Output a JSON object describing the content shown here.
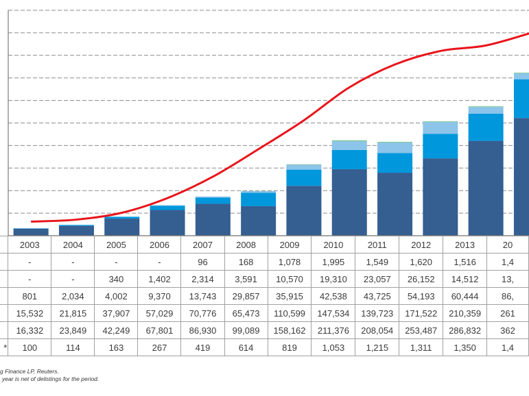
{
  "chart_data": {
    "type": "bar",
    "stacked": true,
    "title": "",
    "xlabel": "",
    "ylabel": "",
    "categories": [
      "2003",
      "2004",
      "2005",
      "2006",
      "2007",
      "2008",
      "2009",
      "2010",
      "2011",
      "2012",
      "2013",
      "2014"
    ],
    "ylim": [
      0,
      500000
    ],
    "y_gridlines": 10,
    "grid": true,
    "series": [
      {
        "name": "",
        "color": "#355e91",
        "values": [
          15532,
          21815,
          37907,
          57029,
          70776,
          65473,
          110599,
          147534,
          139723,
          171522,
          210359,
          261000
        ]
      },
      {
        "name": "",
        "color": "#0097dc",
        "values": [
          801,
          2034,
          4002,
          9370,
          13743,
          29857,
          35915,
          42538,
          43725,
          54193,
          60444,
          86000
        ]
      },
      {
        "name": "",
        "color": "#8cc4ea",
        "values": [
          0,
          0,
          340,
          1402,
          2314,
          3591,
          10570,
          19310,
          23057,
          26152,
          14512,
          13000
        ]
      },
      {
        "name": "",
        "color": "#6dbf8e",
        "values": [
          0,
          0,
          0,
          0,
          96,
          168,
          1078,
          1995,
          1549,
          1620,
          1516,
          1400
        ]
      }
    ],
    "line_series": {
      "name": "index",
      "color": "#e8141b",
      "axis": "secondary",
      "ylim": [
        0,
        1600
      ],
      "values": [
        100,
        114,
        163,
        267,
        419,
        614,
        819,
        1053,
        1215,
        1311,
        1350,
        1440
      ]
    },
    "table": {
      "header": [
        "2003",
        "2004",
        "2005",
        "2006",
        "2007",
        "2008",
        "2009",
        "2010",
        "2011",
        "2012",
        "2013",
        "20"
      ],
      "rows": [
        {
          "label": "",
          "cells": [
            "-",
            "-",
            "-",
            "-",
            "96",
            "168",
            "1,078",
            "1,995",
            "1,549",
            "1,620",
            "1,516",
            "1,4"
          ]
        },
        {
          "label": "",
          "cells": [
            "-",
            "-",
            "340",
            "1,402",
            "2,314",
            "3,591",
            "10,570",
            "19,310",
            "23,057",
            "26,152",
            "14,512",
            "13,"
          ]
        },
        {
          "label": "",
          "cells": [
            "801",
            "2,034",
            "4,002",
            "9,370",
            "13,743",
            "29,857",
            "35,915",
            "42,538",
            "43,725",
            "54,193",
            "60,444",
            "86,"
          ]
        },
        {
          "label": "",
          "cells": [
            "15,532",
            "21,815",
            "37,907",
            "57,029",
            "70,776",
            "65,473",
            "110,599",
            "147,534",
            "139,723",
            "171,522",
            "210,359",
            "261"
          ]
        },
        {
          "label": "",
          "cells": [
            "16,332",
            "23,849",
            "42,249",
            "67,801",
            "86,930",
            "99,089",
            "158,162",
            "211,376",
            "208,054",
            "253,487",
            "286,832",
            "362"
          ]
        },
        {
          "label": "*",
          "cells": [
            "100",
            "114",
            "163",
            "267",
            "419",
            "614",
            "819",
            "1,053",
            "1,215",
            "1,311",
            "1,350",
            "1,4"
          ]
        }
      ]
    },
    "notes": [
      "g Finance LP, Reuters.",
      "year is net of delistings for the period."
    ]
  }
}
